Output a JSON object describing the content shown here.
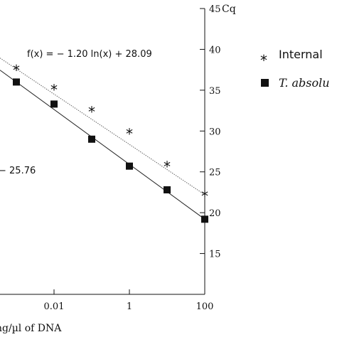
{
  "chart_data": {
    "type": "scatter",
    "xscale": "log",
    "xlim": [
      0.0001,
      100
    ],
    "ylim": [
      10,
      45
    ],
    "x_ticks": [
      {
        "value": 0.01,
        "label": "0.01"
      },
      {
        "value": 1,
        "label": "1"
      },
      {
        "value": 100,
        "label": "100"
      }
    ],
    "y_ticks": [
      {
        "value": 15,
        "label": "15"
      },
      {
        "value": 20,
        "label": "20"
      },
      {
        "value": 25,
        "label": "25"
      },
      {
        "value": 30,
        "label": "30"
      },
      {
        "value": 35,
        "label": "35"
      },
      {
        "value": 40,
        "label": "40"
      },
      {
        "value": 45,
        "label": "45"
      }
    ],
    "xlabel": "ng/µl of DNA",
    "ylabel": "Cq",
    "grid": false,
    "legend_position": "right",
    "series": [
      {
        "name": "Internal",
        "marker": "star",
        "color": "#111111",
        "points": [
          {
            "x": 0.001,
            "y": 37.6
          },
          {
            "x": 0.01,
            "y": 35.2
          },
          {
            "x": 0.1,
            "y": 32.5
          },
          {
            "x": 1,
            "y": 29.8
          },
          {
            "x": 10,
            "y": 25.8
          },
          {
            "x": 100,
            "y": 22.2
          }
        ],
        "fit": {
          "slope_ln": -1.2,
          "intercept": 28.09,
          "style": "dotted"
        }
      },
      {
        "name": "T. absolu",
        "marker": "square",
        "color": "#111111",
        "points": [
          {
            "x": 0.001,
            "y": 36.0
          },
          {
            "x": 0.01,
            "y": 33.3
          },
          {
            "x": 0.1,
            "y": 29.0
          },
          {
            "x": 1,
            "y": 25.7
          },
          {
            "x": 10,
            "y": 22.8
          },
          {
            "x": 100,
            "y": 19.2
          }
        ],
        "fit": {
          "slope_ln": -1.24,
          "intercept": 25.76,
          "style": "solid"
        }
      }
    ],
    "annotations": [
      {
        "text": "f(x) = − 1.20  ln(x) + 28.09"
      },
      {
        "text": "− 25.76"
      }
    ]
  }
}
